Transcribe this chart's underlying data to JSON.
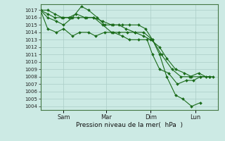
{
  "bg_color": "#cceae4",
  "grid_color": "#aaccc6",
  "line_color": "#1a6b1a",
  "marker_color": "#1a6b1a",
  "xlabel": "Pression niveau de la mer(  hPa  )",
  "ylim": [
    1003.5,
    1017.8
  ],
  "yticks": [
    1004,
    1005,
    1006,
    1007,
    1008,
    1009,
    1010,
    1011,
    1012,
    1013,
    1014,
    1015,
    1016,
    1017
  ],
  "xtick_labels": [
    "Sam",
    "Mar",
    "Dim",
    "Lun"
  ],
  "xtick_positions": [
    0.13,
    0.37,
    0.62,
    0.87
  ],
  "xlim": [
    0.0,
    1.0
  ],
  "series": [
    {
      "x": [
        0.0,
        0.04,
        0.08,
        0.12,
        0.16,
        0.2,
        0.25,
        0.3,
        0.35,
        0.4,
        0.44,
        0.48,
        0.53,
        0.58,
        0.63,
        0.68,
        0.74,
        0.79,
        0.84,
        0.89,
        0.93,
        0.97
      ],
      "y": [
        1017,
        1017,
        1016.5,
        1016,
        1016,
        1016.5,
        1016,
        1016,
        1015.5,
        1015,
        1015,
        1014.5,
        1014,
        1014,
        1013,
        1011,
        1009,
        1008,
        1008,
        1008.5,
        1008,
        1008
      ]
    },
    {
      "x": [
        0.0,
        0.04,
        0.09,
        0.13,
        0.18,
        0.23,
        0.27,
        0.32,
        0.36,
        0.41,
        0.46,
        0.5,
        0.55,
        0.59,
        0.63,
        0.67,
        0.71,
        0.76,
        0.8,
        0.85,
        0.9
      ],
      "y": [
        1017,
        1016,
        1015.5,
        1015,
        1016,
        1017.5,
        1017,
        1016,
        1015,
        1015,
        1015,
        1015,
        1015,
        1014.5,
        1013,
        1011,
        1008,
        1005.5,
        1005,
        1004,
        1004.5
      ]
    },
    {
      "x": [
        0.0,
        0.04,
        0.09,
        0.13,
        0.18,
        0.22,
        0.27,
        0.31,
        0.36,
        0.41,
        0.46,
        0.5,
        0.55,
        0.6,
        0.63,
        0.67,
        0.72,
        0.77,
        0.82,
        0.86,
        0.9,
        0.95
      ],
      "y": [
        1017,
        1014.5,
        1014,
        1014.5,
        1013.5,
        1014,
        1014,
        1013.5,
        1014,
        1014,
        1013.5,
        1013,
        1013,
        1013,
        1011,
        1009,
        1008.5,
        1007,
        1007.5,
        1007.5,
        1008,
        1008
      ]
    },
    {
      "x": [
        0.0,
        0.04,
        0.08,
        0.13,
        0.17,
        0.21,
        0.26,
        0.3,
        0.35,
        0.4,
        0.44,
        0.49,
        0.53,
        0.58,
        0.62,
        0.67,
        0.71,
        0.76,
        0.81,
        0.85,
        0.9,
        0.95
      ],
      "y": [
        1017,
        1016.5,
        1016,
        1016,
        1016,
        1016,
        1016,
        1016,
        1015,
        1014,
        1014,
        1014,
        1014,
        1013.5,
        1013,
        1012,
        1010.5,
        1009,
        1008.5,
        1008,
        1008,
        1008
      ]
    }
  ]
}
